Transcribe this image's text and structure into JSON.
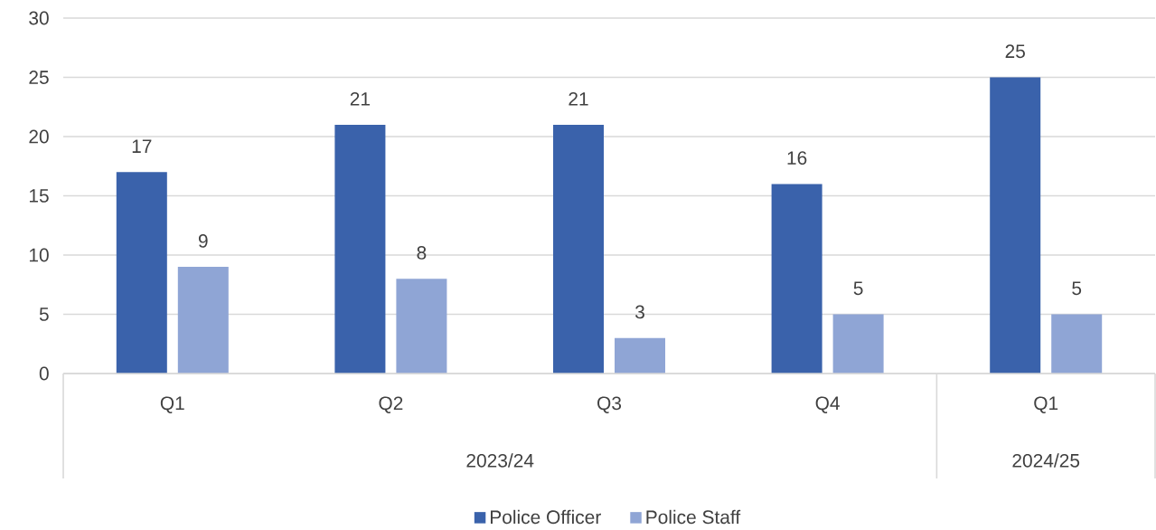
{
  "chart_data": {
    "type": "bar",
    "categories": [
      "Q1",
      "Q2",
      "Q3",
      "Q4",
      "Q1"
    ],
    "series": [
      {
        "name": "Police Officer",
        "color": "#3a62ab",
        "values": [
          17,
          21,
          21,
          16,
          25
        ]
      },
      {
        "name": "Police Staff",
        "color": "#8fa5d5",
        "values": [
          9,
          8,
          3,
          5,
          5
        ]
      }
    ],
    "annotations": [
      "2023/24",
      "2024/25"
    ],
    "ylim": [
      0,
      30
    ],
    "yticks": [
      0,
      5,
      10,
      15,
      20,
      25,
      30
    ],
    "grid": "y",
    "legend": "bottom",
    "data_labels": true
  }
}
